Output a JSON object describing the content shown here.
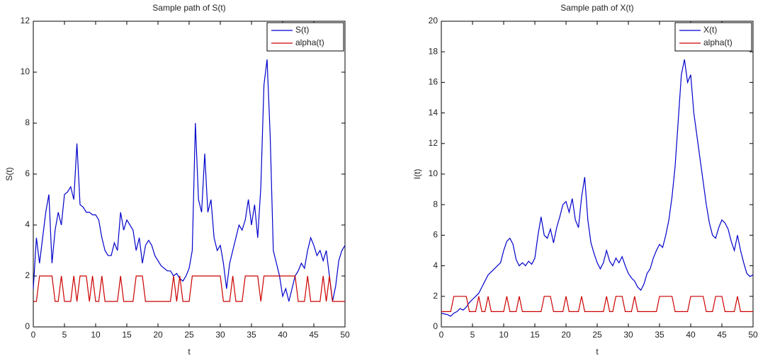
{
  "chart_data": [
    {
      "type": "line",
      "title": "Sample path of S(t)",
      "x_label": "t",
      "y_label": "S(t)",
      "x": [
        0,
        0.5,
        1,
        1.5,
        2,
        2.5,
        3,
        3.5,
        4,
        4.5,
        5,
        5.5,
        6,
        6.5,
        7,
        7.5,
        8,
        8.5,
        9,
        9.5,
        10,
        10.5,
        11,
        11.5,
        12,
        12.5,
        13,
        13.5,
        14,
        14.5,
        15,
        15.5,
        16,
        16.5,
        17,
        17.5,
        18,
        18.5,
        19,
        19.5,
        20,
        20.5,
        21,
        21.5,
        22,
        22.5,
        23,
        23.5,
        24,
        24.5,
        25,
        25.5,
        26,
        26.5,
        27,
        27.5,
        28,
        28.5,
        29,
        29.5,
        30,
        30.5,
        31,
        31.5,
        32,
        32.5,
        33,
        33.5,
        34,
        34.5,
        35,
        35.5,
        36,
        36.5,
        37,
        37.5,
        38,
        38.5,
        39,
        39.5,
        40,
        40.5,
        41,
        41.5,
        42,
        42.5,
        43,
        43.5,
        44,
        44.5,
        45,
        45.5,
        46,
        46.5,
        47,
        47.5,
        48,
        48.5,
        49,
        49.5,
        50
      ],
      "series": [
        {
          "name": "S(t)",
          "color": "#0000cc",
          "values": [
            1.5,
            3.5,
            2.5,
            3.5,
            4.5,
            5.2,
            2.5,
            3.8,
            4.5,
            4.0,
            5.2,
            5.3,
            5.5,
            5.0,
            7.2,
            4.8,
            4.7,
            4.5,
            4.5,
            4.4,
            4.4,
            4.2,
            3.5,
            3.0,
            2.8,
            2.8,
            3.3,
            3.0,
            4.5,
            3.8,
            4.2,
            4.0,
            3.8,
            3.0,
            3.5,
            2.5,
            3.2,
            3.4,
            3.2,
            2.8,
            2.6,
            2.4,
            2.3,
            2.2,
            2.2,
            2.0,
            2.1,
            1.9,
            1.8,
            2.0,
            2.3,
            3.0,
            8.0,
            5.0,
            4.5,
            6.8,
            4.5,
            5.0,
            3.5,
            3.0,
            3.2,
            2.5,
            1.5,
            2.5,
            3.0,
            3.5,
            4.0,
            3.8,
            4.2,
            5.0,
            4.0,
            4.8,
            3.5,
            5.5,
            9.5,
            10.5,
            7.5,
            3.0,
            2.5,
            2.0,
            1.2,
            1.5,
            1.0,
            1.5,
            2.0,
            2.2,
            2.5,
            2.3,
            3.0,
            3.5,
            3.2,
            2.8,
            3.0,
            2.6,
            3.0,
            2.0,
            1.0,
            1.6,
            2.6,
            3.0,
            3.2
          ]
        },
        {
          "name": "alpha(t)",
          "color": "#cc0000",
          "values": [
            1,
            1,
            2,
            2,
            2,
            2,
            2,
            1,
            1,
            2,
            1,
            1,
            1,
            2,
            1,
            2,
            2,
            2,
            1,
            2,
            1,
            1,
            2,
            1,
            1,
            1,
            1,
            1,
            2,
            1,
            1,
            1,
            1,
            2,
            2,
            2,
            1,
            1,
            1,
            1,
            1,
            1,
            1,
            1,
            1,
            2,
            1,
            2,
            1,
            1,
            1,
            2,
            2,
            2,
            2,
            2,
            2,
            2,
            2,
            2,
            2,
            1,
            1,
            1,
            2,
            1,
            1,
            1,
            2,
            2,
            2,
            2,
            2,
            1,
            2,
            2,
            2,
            2,
            2,
            2,
            2,
            2,
            2,
            2,
            2,
            1,
            1,
            1,
            2,
            1,
            1,
            1,
            1,
            2,
            1,
            2,
            1,
            1,
            1,
            1,
            1
          ]
        }
      ],
      "xlim": [
        0,
        50
      ],
      "xticks": [
        0,
        5,
        10,
        15,
        20,
        25,
        30,
        35,
        40,
        45,
        50
      ],
      "ylim": [
        0,
        12
      ],
      "yticks": [
        0,
        2,
        4,
        6,
        8,
        10,
        12
      ],
      "legend": "upper-right"
    },
    {
      "type": "line",
      "title": "Sample path of X(t)",
      "x_label": "t",
      "y_label": "I(t)",
      "x": [
        0,
        0.5,
        1,
        1.5,
        2,
        2.5,
        3,
        3.5,
        4,
        4.5,
        5,
        5.5,
        6,
        6.5,
        7,
        7.5,
        8,
        8.5,
        9,
        9.5,
        10,
        10.5,
        11,
        11.5,
        12,
        12.5,
        13,
        13.5,
        14,
        14.5,
        15,
        15.5,
        16,
        16.5,
        17,
        17.5,
        18,
        18.5,
        19,
        19.5,
        20,
        20.5,
        21,
        21.5,
        22,
        22.5,
        23,
        23.5,
        24,
        24.5,
        25,
        25.5,
        26,
        26.5,
        27,
        27.5,
        28,
        28.5,
        29,
        29.5,
        30,
        30.5,
        31,
        31.5,
        32,
        32.5,
        33,
        33.5,
        34,
        34.5,
        35,
        35.5,
        36,
        36.5,
        37,
        37.5,
        38,
        38.5,
        39,
        39.5,
        40,
        40.5,
        41,
        41.5,
        42,
        42.5,
        43,
        43.5,
        44,
        44.5,
        45,
        45.5,
        46,
        46.5,
        47,
        47.5,
        48,
        48.5,
        49,
        49.5,
        50
      ],
      "series": [
        {
          "name": "X(t)",
          "color": "#0000cc",
          "values": [
            0.9,
            0.85,
            0.8,
            0.7,
            0.9,
            1.0,
            1.2,
            1.1,
            1.3,
            1.6,
            1.8,
            2.0,
            2.2,
            2.6,
            3.0,
            3.4,
            3.6,
            3.8,
            4.0,
            4.2,
            5.0,
            5.6,
            5.8,
            5.4,
            4.4,
            4.0,
            4.2,
            4.0,
            4.3,
            4.1,
            4.5,
            6.0,
            7.2,
            6.0,
            5.8,
            6.4,
            5.5,
            6.5,
            7.2,
            8.0,
            8.2,
            7.5,
            8.4,
            7.0,
            6.5,
            8.5,
            9.8,
            7.0,
            5.5,
            4.8,
            4.2,
            3.8,
            4.2,
            5.0,
            4.3,
            4.0,
            4.5,
            4.2,
            4.6,
            4.0,
            3.5,
            3.2,
            3.0,
            2.6,
            2.4,
            2.8,
            3.5,
            3.8,
            4.5,
            5.0,
            5.4,
            5.2,
            6.0,
            7.0,
            8.5,
            10.5,
            13.5,
            16.5,
            17.5,
            16.0,
            16.5,
            14.0,
            12.5,
            11.0,
            9.5,
            8.0,
            6.8,
            6.0,
            5.8,
            6.5,
            7.0,
            6.8,
            6.4,
            5.6,
            5.0,
            6.0,
            5.0,
            4.2,
            3.5,
            3.3,
            3.4
          ]
        },
        {
          "name": "alpha(t)",
          "color": "#cc0000",
          "values": [
            1,
            1,
            1,
            1,
            2,
            2,
            2,
            2,
            2,
            1,
            1,
            1,
            2,
            1,
            1,
            2,
            1,
            1,
            1,
            1,
            1,
            2,
            1,
            1,
            1,
            2,
            1,
            1,
            1,
            1,
            1,
            1,
            1,
            2,
            2,
            2,
            1,
            1,
            1,
            1,
            2,
            1,
            1,
            1,
            1,
            2,
            1,
            1,
            1,
            1,
            1,
            1,
            1,
            2,
            1,
            1,
            2,
            2,
            2,
            1,
            1,
            1,
            2,
            1,
            1,
            1,
            1,
            1,
            1,
            1,
            2,
            2,
            2,
            2,
            2,
            1,
            1,
            1,
            1,
            1,
            2,
            2,
            2,
            2,
            2,
            1,
            1,
            1,
            2,
            2,
            2,
            1,
            1,
            1,
            1,
            2,
            1,
            1,
            1,
            1,
            1
          ]
        }
      ],
      "xlim": [
        0,
        50
      ],
      "xticks": [
        0,
        5,
        10,
        15,
        20,
        25,
        30,
        35,
        40,
        45,
        50
      ],
      "ylim": [
        0,
        20
      ],
      "yticks": [
        0,
        2,
        4,
        6,
        8,
        10,
        12,
        14,
        16,
        18,
        20
      ],
      "legend": "upper-right"
    }
  ]
}
